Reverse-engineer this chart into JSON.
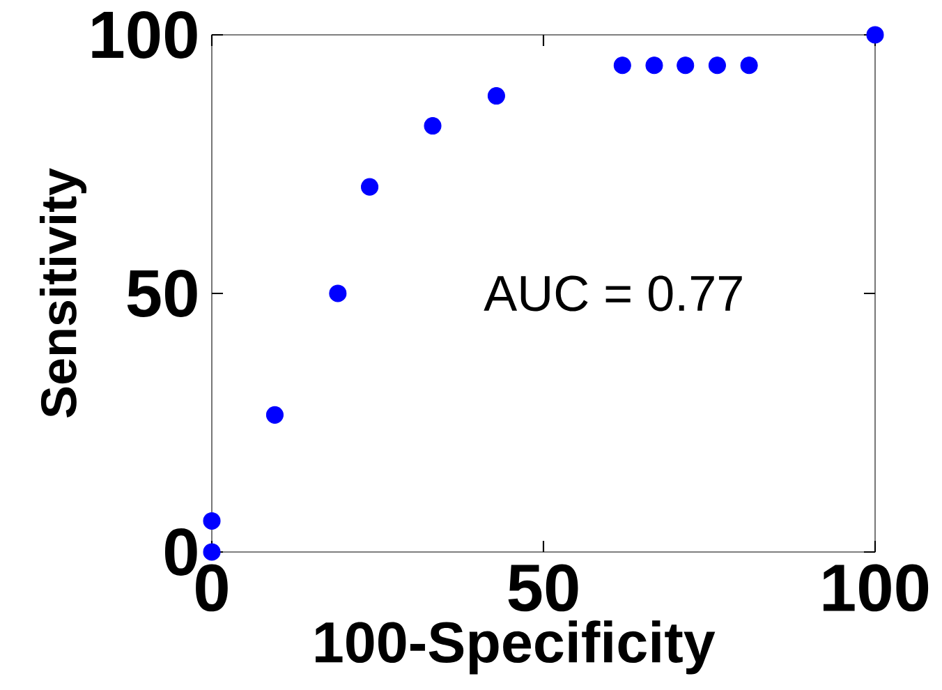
{
  "chart_data": {
    "type": "scatter",
    "xlabel": "100-Specificity",
    "ylabel": "Sensitivity",
    "annotations": [
      "AUC = 0.77"
    ],
    "x": [
      0,
      0,
      9.5,
      19,
      23.8,
      33.3,
      42.9,
      61.9,
      66.7,
      71.4,
      76.2,
      81,
      100
    ],
    "series": [
      {
        "color": "#0000ff",
        "values": [
          0,
          6,
          26.5,
          50,
          70.6,
          82.4,
          88.2,
          94.1,
          94.1,
          94.1,
          94.1,
          94.1,
          100
        ]
      }
    ],
    "xlim": [
      0,
      100
    ],
    "ylim": [
      0,
      100
    ],
    "xticks": [
      0,
      50,
      100
    ],
    "yticks": [
      0,
      50,
      100
    ],
    "grid": false,
    "marker": "circle",
    "line_style": "none"
  }
}
